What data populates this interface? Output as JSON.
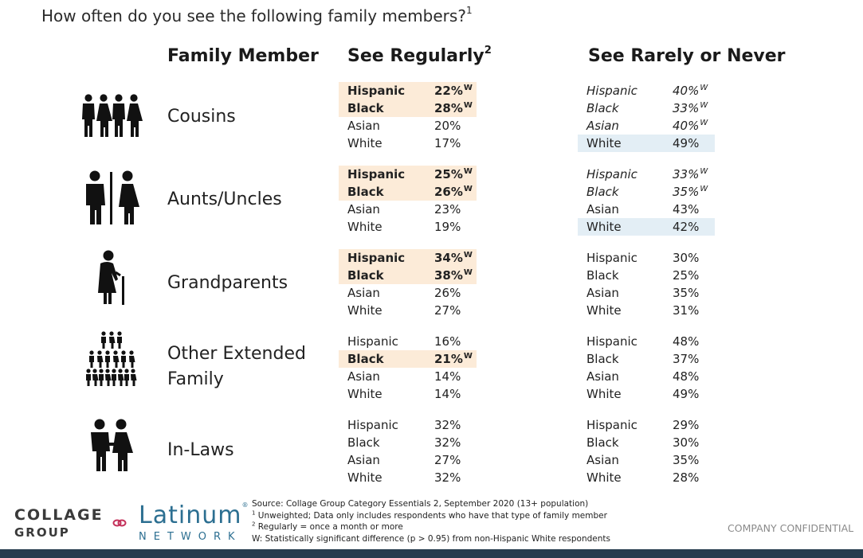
{
  "title": "How often do you see the following family members?",
  "title_sup": "1",
  "headers": {
    "family_member": "Family Member",
    "see_regularly": "See Regularly",
    "see_regularly_sup": "2",
    "see_rarely": "See Rarely or Never"
  },
  "colors": {
    "highlight_regular": "#fcebd8",
    "highlight_rare": "#e3eef5",
    "logo_blue": "#2c6f91",
    "footer_bar": "#263c4e"
  },
  "rows": [
    {
      "label_lines": [
        "Cousins"
      ],
      "icon": "cousins-icon",
      "regularly": [
        {
          "group": "Hispanic",
          "value": "22%",
          "sig": "W",
          "highlight": true
        },
        {
          "group": "Black",
          "value": "28%",
          "sig": "W",
          "highlight": true
        },
        {
          "group": "Asian",
          "value": "20%",
          "sig": "",
          "highlight": false
        },
        {
          "group": "White",
          "value": "17%",
          "sig": "",
          "highlight": false
        }
      ],
      "rarely": [
        {
          "group": "Hispanic",
          "value": "40%",
          "sig": "W",
          "italic": true,
          "highlight": false
        },
        {
          "group": "Black",
          "value": "33%",
          "sig": "W",
          "italic": true,
          "highlight": false
        },
        {
          "group": "Asian",
          "value": "40%",
          "sig": "W",
          "italic": true,
          "highlight": false
        },
        {
          "group": "White",
          "value": "49%",
          "sig": "",
          "italic": false,
          "highlight": true
        }
      ]
    },
    {
      "label_lines": [
        "Aunts/Uncles"
      ],
      "icon": "aunts-uncles-icon",
      "regularly": [
        {
          "group": "Hispanic",
          "value": "25%",
          "sig": "W",
          "highlight": true
        },
        {
          "group": "Black",
          "value": "26%",
          "sig": "W",
          "highlight": true
        },
        {
          "group": "Asian",
          "value": "23%",
          "sig": "",
          "highlight": false
        },
        {
          "group": "White",
          "value": "19%",
          "sig": "",
          "highlight": false
        }
      ],
      "rarely": [
        {
          "group": "Hispanic",
          "value": "33%",
          "sig": "W",
          "italic": true,
          "highlight": false
        },
        {
          "group": "Black",
          "value": "35%",
          "sig": "W",
          "italic": true,
          "highlight": false
        },
        {
          "group": "Asian",
          "value": "43%",
          "sig": "",
          "italic": false,
          "highlight": false
        },
        {
          "group": "White",
          "value": "42%",
          "sig": "",
          "italic": false,
          "highlight": true
        }
      ]
    },
    {
      "label_lines": [
        "Grandparents"
      ],
      "icon": "grandparent-icon",
      "regularly": [
        {
          "group": "Hispanic",
          "value": "34%",
          "sig": "W",
          "highlight": true
        },
        {
          "group": "Black",
          "value": "38%",
          "sig": "W",
          "highlight": true
        },
        {
          "group": "Asian",
          "value": "26%",
          "sig": "",
          "highlight": false
        },
        {
          "group": "White",
          "value": "27%",
          "sig": "",
          "highlight": false
        }
      ],
      "rarely": [
        {
          "group": "Hispanic",
          "value": "30%",
          "sig": "",
          "italic": false,
          "highlight": false
        },
        {
          "group": "Black",
          "value": "25%",
          "sig": "",
          "italic": false,
          "highlight": false
        },
        {
          "group": "Asian",
          "value": "35%",
          "sig": "",
          "italic": false,
          "highlight": false
        },
        {
          "group": "White",
          "value": "31%",
          "sig": "",
          "italic": false,
          "highlight": false
        }
      ]
    },
    {
      "label_lines": [
        "Other Extended",
        "Family"
      ],
      "icon": "extended-family-icon",
      "regularly": [
        {
          "group": "Hispanic",
          "value": "16%",
          "sig": "",
          "highlight": false
        },
        {
          "group": "Black",
          "value": "21%",
          "sig": "W",
          "highlight": true
        },
        {
          "group": "Asian",
          "value": "14%",
          "sig": "",
          "highlight": false
        },
        {
          "group": "White",
          "value": "14%",
          "sig": "",
          "highlight": false
        }
      ],
      "rarely": [
        {
          "group": "Hispanic",
          "value": "48%",
          "sig": "",
          "italic": false,
          "highlight": false
        },
        {
          "group": "Black",
          "value": "37%",
          "sig": "",
          "italic": false,
          "highlight": false
        },
        {
          "group": "Asian",
          "value": "48%",
          "sig": "",
          "italic": false,
          "highlight": false
        },
        {
          "group": "White",
          "value": "49%",
          "sig": "",
          "italic": false,
          "highlight": false
        }
      ]
    },
    {
      "label_lines": [
        "In-Laws"
      ],
      "icon": "in-laws-icon",
      "regularly": [
        {
          "group": "Hispanic",
          "value": "32%",
          "sig": "",
          "highlight": false
        },
        {
          "group": "Black",
          "value": "32%",
          "sig": "",
          "highlight": false
        },
        {
          "group": "Asian",
          "value": "27%",
          "sig": "",
          "highlight": false
        },
        {
          "group": "White",
          "value": "32%",
          "sig": "",
          "highlight": false
        }
      ],
      "rarely": [
        {
          "group": "Hispanic",
          "value": "29%",
          "sig": "",
          "italic": false,
          "highlight": false
        },
        {
          "group": "Black",
          "value": "30%",
          "sig": "",
          "italic": false,
          "highlight": false
        },
        {
          "group": "Asian",
          "value": "35%",
          "sig": "",
          "italic": false,
          "highlight": false
        },
        {
          "group": "White",
          "value": "28%",
          "sig": "",
          "italic": false,
          "highlight": false
        }
      ]
    }
  ],
  "footer": {
    "source": "Source: Collage Group Category Essentials 2, September 2020 (13+ population)",
    "note1_mark": "1",
    "note1": " Unweighted; Data only includes respondents who have that type of family member",
    "note2_mark": "2",
    "note2": " Regularly = once a month or more",
    "note3": "W: Statistically significant difference (p > 0.95) from non-Hispanic White respondents",
    "confidential": "COMPANY CONFIDENTIAL"
  },
  "logos": {
    "collage_line1": "COLLAGE",
    "collage_line2": "GROUP",
    "latinum": "Latinum",
    "latinum_mark": "®",
    "network": "NETWORK"
  }
}
